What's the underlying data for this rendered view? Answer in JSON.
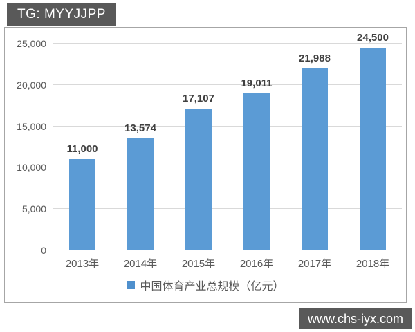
{
  "overlays": {
    "top_left_tag": "TG: MYYJJPP",
    "bottom_right_watermark": "www.chs-iyx.com"
  },
  "chart_data": {
    "type": "bar",
    "title": "",
    "categories": [
      "2013年",
      "2014年",
      "2015年",
      "2016年",
      "2017年",
      "2018年"
    ],
    "values": [
      11000,
      13574,
      17107,
      19011,
      21988,
      24500
    ],
    "data_labels": [
      "11,000",
      "13,574",
      "17,107",
      "19,011",
      "21,988",
      "24,500"
    ],
    "legend": "中国体育产业总规模（亿元）",
    "legend_position": "bottom",
    "xlabel": "",
    "ylabel": "",
    "ylim": [
      0,
      25000
    ],
    "yticks": [
      0,
      5000,
      10000,
      15000,
      20000,
      25000
    ],
    "ytick_labels": [
      "0",
      "5,000",
      "10,000",
      "15,000",
      "20,000",
      "25,000"
    ],
    "grid": true,
    "bar_color": "#5b9bd5"
  },
  "colors": {
    "bar": "#5b9bd5",
    "gridline": "#d9d9d9",
    "panel_border": "#a6a6a6",
    "axis_text": "#595959",
    "data_label_text": "#404040",
    "overlay_background": "#595959",
    "overlay_text": "#ffffff"
  }
}
